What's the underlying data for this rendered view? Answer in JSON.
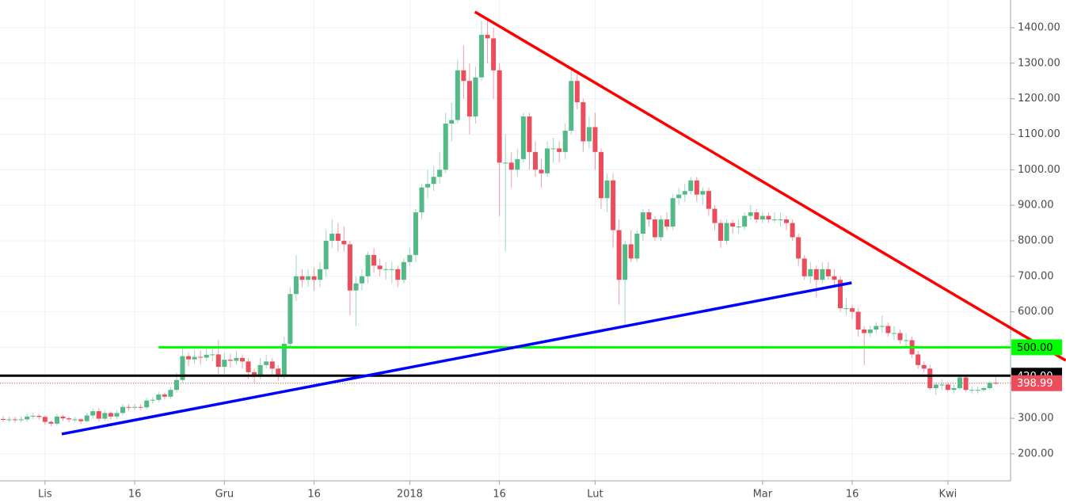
{
  "chart_data": {
    "type": "candlestick",
    "categories": [
      null,
      null,
      null,
      null,
      null,
      null,
      null,
      "Lis",
      null,
      null,
      null,
      null,
      null,
      null,
      null,
      null,
      null,
      null,
      null,
      null,
      null,
      null,
      "16",
      null,
      null,
      null,
      null,
      null,
      null,
      null,
      null,
      null,
      null,
      null,
      null,
      null,
      null,
      "Gru",
      null,
      null,
      null,
      null,
      null,
      null,
      null,
      null,
      null,
      null,
      null,
      null,
      null,
      null,
      "16",
      null,
      null,
      null,
      null,
      null,
      null,
      null,
      null,
      null,
      null,
      null,
      null,
      null,
      null,
      null,
      "2018",
      null,
      null,
      null,
      null,
      null,
      null,
      null,
      null,
      null,
      null,
      null,
      null,
      null,
      null,
      "16",
      null,
      null,
      null,
      null,
      null,
      null,
      null,
      null,
      null,
      null,
      null,
      null,
      null,
      null,
      null,
      "Lut",
      null,
      null,
      null,
      null,
      null,
      null,
      null,
      null,
      null,
      null,
      null,
      null,
      null,
      null,
      null,
      null,
      null,
      null,
      null,
      null,
      null,
      null,
      null,
      null,
      null,
      null,
      null,
      "Mar",
      null,
      null,
      null,
      null,
      null,
      null,
      null,
      null,
      null,
      null,
      null,
      null,
      null,
      null,
      "16",
      null,
      null,
      null,
      null,
      null,
      null,
      null,
      null,
      null,
      null,
      null,
      null,
      null,
      null,
      null,
      "Kwi",
      null,
      null,
      null,
      null,
      null,
      null,
      null,
      null
    ],
    "ohlc": [
      [
        298,
        306,
        290,
        297
      ],
      [
        297,
        305,
        289,
        297
      ],
      [
        297,
        304,
        288,
        296
      ],
      [
        296,
        305,
        289,
        297
      ],
      [
        297,
        313,
        290,
        305
      ],
      [
        305,
        315,
        297,
        307
      ],
      [
        307,
        312,
        296,
        304
      ],
      [
        304,
        308,
        282,
        290
      ],
      [
        290,
        295,
        277,
        285
      ],
      [
        285,
        313,
        280,
        305
      ],
      [
        305,
        310,
        292,
        300
      ],
      [
        300,
        305,
        289,
        297
      ],
      [
        297,
        304,
        289,
        297
      ],
      [
        297,
        300,
        284,
        292
      ],
      [
        292,
        316,
        288,
        308
      ],
      [
        308,
        328,
        300,
        320
      ],
      [
        320,
        328,
        291,
        299
      ],
      [
        299,
        323,
        293,
        315
      ],
      [
        315,
        320,
        297,
        305
      ],
      [
        305,
        323,
        298,
        315
      ],
      [
        315,
        340,
        308,
        332
      ],
      [
        332,
        340,
        322,
        330
      ],
      [
        330,
        340,
        322,
        332
      ],
      [
        332,
        340,
        323,
        331
      ],
      [
        331,
        358,
        325,
        350
      ],
      [
        350,
        360,
        342,
        352
      ],
      [
        352,
        375,
        345,
        367
      ],
      [
        367,
        372,
        353,
        361
      ],
      [
        361,
        388,
        355,
        380
      ],
      [
        380,
        428,
        372,
        408
      ],
      [
        408,
        495,
        400,
        475
      ],
      [
        475,
        485,
        446,
        466
      ],
      [
        466,
        493,
        453,
        473
      ],
      [
        473,
        491,
        451,
        471
      ],
      [
        471,
        499,
        460,
        479
      ],
      [
        479,
        500,
        460,
        480
      ],
      [
        480,
        520,
        425,
        445
      ],
      [
        445,
        485,
        425,
        465
      ],
      [
        465,
        482,
        442,
        462
      ],
      [
        462,
        490,
        450,
        470
      ],
      [
        470,
        480,
        440,
        460
      ],
      [
        460,
        470,
        410,
        430
      ],
      [
        430,
        440,
        400,
        420
      ],
      [
        420,
        470,
        410,
        450
      ],
      [
        450,
        480,
        440,
        460
      ],
      [
        460,
        470,
        420,
        440
      ],
      [
        440,
        450,
        405,
        420
      ],
      [
        420,
        530,
        410,
        510
      ],
      [
        510,
        670,
        500,
        650
      ],
      [
        650,
        760,
        630,
        700
      ],
      [
        700,
        720,
        670,
        690
      ],
      [
        690,
        720,
        670,
        700
      ],
      [
        700,
        725,
        660,
        690
      ],
      [
        690,
        740,
        670,
        720
      ],
      [
        720,
        830,
        700,
        800
      ],
      [
        800,
        860,
        780,
        820
      ],
      [
        820,
        850,
        770,
        800
      ],
      [
        800,
        840,
        770,
        790
      ],
      [
        790,
        800,
        590,
        660
      ],
      [
        660,
        700,
        560,
        680
      ],
      [
        680,
        720,
        660,
        700
      ],
      [
        700,
        770,
        680,
        760
      ],
      [
        760,
        780,
        710,
        730
      ],
      [
        730,
        750,
        700,
        720
      ],
      [
        720,
        740,
        690,
        720
      ],
      [
        720,
        740,
        680,
        720
      ],
      [
        720,
        730,
        670,
        690
      ],
      [
        690,
        750,
        680,
        740
      ],
      [
        740,
        780,
        730,
        760
      ],
      [
        760,
        890,
        740,
        880
      ],
      [
        880,
        960,
        860,
        950
      ],
      [
        950,
        1000,
        920,
        960
      ],
      [
        960,
        1010,
        940,
        980
      ],
      [
        980,
        1050,
        960,
        1000
      ],
      [
        1000,
        1160,
        990,
        1130
      ],
      [
        1130,
        1190,
        1080,
        1140
      ],
      [
        1140,
        1310,
        1130,
        1280
      ],
      [
        1280,
        1350,
        1200,
        1250
      ],
      [
        1250,
        1300,
        1100,
        1150
      ],
      [
        1150,
        1290,
        1130,
        1260
      ],
      [
        1260,
        1420,
        1250,
        1380
      ],
      [
        1380,
        1420,
        1300,
        1370
      ],
      [
        1370,
        1400,
        1200,
        1280
      ],
      [
        1280,
        1300,
        870,
        1020
      ],
      [
        1020,
        1100,
        770,
        1020
      ],
      [
        1020,
        1050,
        950,
        1000
      ],
      [
        1000,
        1060,
        980,
        1030
      ],
      [
        1030,
        1160,
        1020,
        1150
      ],
      [
        1150,
        1160,
        1000,
        1050
      ],
      [
        1050,
        1080,
        980,
        1000
      ],
      [
        1000,
        1030,
        950,
        990
      ],
      [
        990,
        1080,
        980,
        1060
      ],
      [
        1060,
        1090,
        1020,
        1060
      ],
      [
        1060,
        1080,
        1020,
        1050
      ],
      [
        1050,
        1130,
        1030,
        1110
      ],
      [
        1110,
        1280,
        1100,
        1250
      ],
      [
        1250,
        1270,
        1170,
        1190
      ],
      [
        1190,
        1200,
        1050,
        1080
      ],
      [
        1080,
        1150,
        1060,
        1120
      ],
      [
        1120,
        1160,
        1000,
        1050
      ],
      [
        1050,
        1060,
        890,
        920
      ],
      [
        920,
        990,
        880,
        970
      ],
      [
        970,
        990,
        780,
        830
      ],
      [
        830,
        860,
        620,
        690
      ],
      [
        690,
        800,
        560,
        790
      ],
      [
        790,
        830,
        740,
        750
      ],
      [
        750,
        830,
        740,
        820
      ],
      [
        820,
        890,
        800,
        880
      ],
      [
        880,
        890,
        840,
        860
      ],
      [
        860,
        870,
        800,
        810
      ],
      [
        810,
        870,
        800,
        860
      ],
      [
        860,
        880,
        830,
        840
      ],
      [
        840,
        930,
        830,
        920
      ],
      [
        920,
        950,
        900,
        930
      ],
      [
        930,
        960,
        910,
        940
      ],
      [
        940,
        980,
        930,
        970
      ],
      [
        970,
        980,
        910,
        930
      ],
      [
        930,
        950,
        900,
        940
      ],
      [
        940,
        950,
        870,
        890
      ],
      [
        890,
        900,
        830,
        850
      ],
      [
        850,
        860,
        780,
        800
      ],
      [
        800,
        860,
        790,
        850
      ],
      [
        850,
        860,
        820,
        840
      ],
      [
        840,
        860,
        820,
        840
      ],
      [
        840,
        880,
        830,
        870
      ],
      [
        870,
        900,
        860,
        880
      ],
      [
        880,
        890,
        850,
        860
      ],
      [
        860,
        880,
        850,
        870
      ],
      [
        870,
        880,
        850,
        860
      ],
      [
        860,
        880,
        850,
        860
      ],
      [
        860,
        880,
        840,
        860
      ],
      [
        860,
        870,
        830,
        850
      ],
      [
        850,
        860,
        800,
        810
      ],
      [
        810,
        820,
        730,
        750
      ],
      [
        750,
        760,
        690,
        700
      ],
      [
        700,
        740,
        680,
        720
      ],
      [
        720,
        730,
        640,
        690
      ],
      [
        690,
        740,
        680,
        720
      ],
      [
        720,
        740,
        690,
        700
      ],
      [
        700,
        720,
        670,
        690
      ],
      [
        690,
        700,
        600,
        610
      ],
      [
        610,
        640,
        590,
        610
      ],
      [
        610,
        620,
        580,
        600
      ],
      [
        600,
        610,
        530,
        550
      ],
      [
        550,
        560,
        450,
        540
      ],
      [
        540,
        560,
        530,
        550
      ],
      [
        550,
        570,
        540,
        560
      ],
      [
        560,
        590,
        540,
        560
      ],
      [
        560,
        570,
        530,
        540
      ],
      [
        540,
        560,
        520,
        540
      ],
      [
        540,
        550,
        510,
        520
      ],
      [
        520,
        540,
        500,
        520
      ],
      [
        520,
        530,
        470,
        480
      ],
      [
        480,
        490,
        440,
        450
      ],
      [
        450,
        460,
        430,
        440
      ],
      [
        440,
        450,
        380,
        385
      ],
      [
        385,
        400,
        365,
        395
      ],
      [
        395,
        410,
        380,
        395
      ],
      [
        395,
        400,
        375,
        380
      ],
      [
        380,
        395,
        370,
        385
      ],
      [
        385,
        420,
        380,
        415
      ],
      [
        415,
        420,
        375,
        380
      ],
      [
        380,
        390,
        370,
        380
      ],
      [
        380,
        390,
        370,
        380
      ],
      [
        380,
        390,
        375,
        385
      ],
      [
        385,
        405,
        380,
        400
      ],
      [
        400,
        420,
        395,
        398.99
      ]
    ],
    "up_color": "#53b987",
    "down_color": "#eb4d5c",
    "ylim": [
      124,
      1478
    ],
    "yticks": [
      {
        "value": 200,
        "label": "200.00"
      },
      {
        "value": 300,
        "label": "300.00"
      },
      {
        "value": 400,
        "label": "400.00"
      },
      {
        "value": 500,
        "label": "500.00"
      },
      {
        "value": 600,
        "label": "600.00"
      },
      {
        "value": 700,
        "label": "700.00"
      },
      {
        "value": 800,
        "label": "800.00"
      },
      {
        "value": 900,
        "label": "900.00"
      },
      {
        "value": 1000,
        "label": "1000.00"
      },
      {
        "value": 1100,
        "label": "1100.00"
      },
      {
        "value": 1200,
        "label": "1200.00"
      },
      {
        "value": 1300,
        "label": "1300.00"
      },
      {
        "value": 1400,
        "label": "1400.00"
      }
    ],
    "grid": true,
    "levels": [
      {
        "value": 500,
        "label": "500.00",
        "color": "#00ff00",
        "start": 26
      },
      {
        "value": 420,
        "label": "420.00",
        "color": "#000000",
        "start": -1
      }
    ],
    "trendlines": [
      {
        "color": "#ff0000",
        "x": [
          78.9,
          177.7
        ],
        "y": [
          1444.6,
          463
        ]
      },
      {
        "color": "#0000ff",
        "x": [
          9.8,
          141.9
        ],
        "y": [
          255.7,
          681.7
        ]
      }
    ]
  }
}
